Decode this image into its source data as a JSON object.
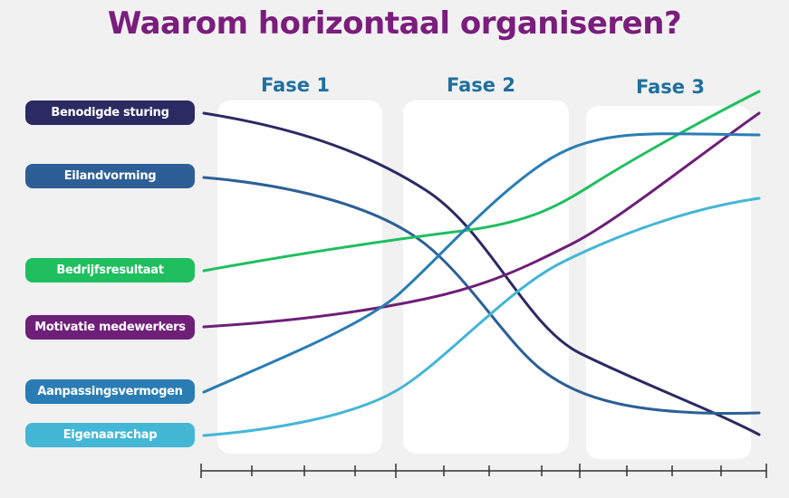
{
  "title": "Waarom horizontaal organiseren?",
  "phases": [
    "Fase 1",
    "Fase 2",
    "Fase 3"
  ],
  "legend": [
    {
      "label": "Benodigde sturing",
      "color": "#2b2a63"
    },
    {
      "label": "Eilandvorming",
      "color": "#2d5f96"
    },
    {
      "label": "Bedrijfsresultaat",
      "color": "#1fbf5f"
    },
    {
      "label": "Motivatie medewerkers",
      "color": "#6e1f78"
    },
    {
      "label": "Aanpassingsvermogen",
      "color": "#2a7db4"
    },
    {
      "label": "Eigenaarschap",
      "color": "#44b6d6"
    }
  ]
}
